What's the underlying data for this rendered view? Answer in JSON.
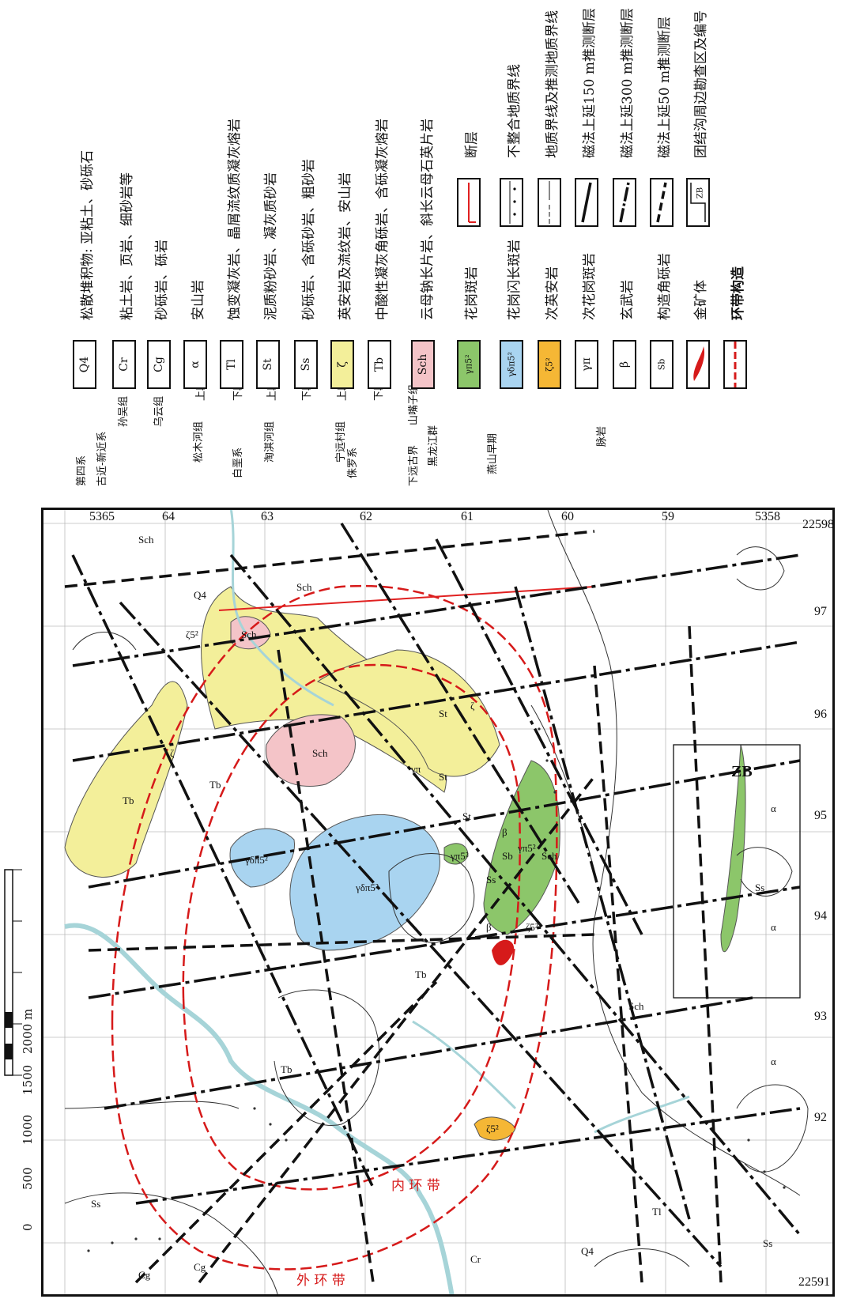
{
  "scale_bar": {
    "ticks": [
      "0",
      "500",
      "1000",
      "1500",
      "2000 m"
    ]
  },
  "legend_groups": {
    "quaternary": "第四系",
    "paleogene_neogene": "古近-新近系",
    "cretaceous": "白垩系",
    "jurassic": "侏罗系",
    "paleoproterozoic": "下远古界",
    "yanshan": "燕山早期",
    "dikes": "脉岩"
  },
  "formations": {
    "sunwu": "孙吴组",
    "wuyun": "乌云组",
    "songmuhe": "松木河组",
    "nenjianghe": "淘淇河组",
    "ningyuancun": "宁远村组",
    "heilongjiang": "黑龙江群",
    "shanzuizi": "山嘴子组",
    "upper": "上段",
    "lower": "下段"
  },
  "legend_items": [
    {
      "code": "Q4",
      "text": "松散堆积物: 亚粘土、砂砾石",
      "fill": "#ffffff"
    },
    {
      "code": "Cr",
      "text": "粘土岩、页岩、细砂岩等",
      "fill": "#ffffff"
    },
    {
      "code": "Cg",
      "text": "砂砾岩、砾岩",
      "fill": "#ffffff"
    },
    {
      "code": "α",
      "text": "安山岩",
      "fill": "#ffffff"
    },
    {
      "code": "Tl",
      "text": "蚀变凝灰岩、晶屑流纹质凝灰熔岩",
      "fill": "#ffffff"
    },
    {
      "code": "St",
      "text": "泥质粉砂岩、凝灰质砂岩",
      "fill": "#ffffff"
    },
    {
      "code": "Ss",
      "text": "砂砾岩、含砾砂岩、粗砂岩",
      "fill": "#ffffff"
    },
    {
      "code": "ζ",
      "text": "英安岩及流纹岩、安山岩",
      "fill": "#f3ef9a"
    },
    {
      "code": "Tb",
      "text": "中酸性凝灰角砾岩、含砾凝灰熔岩",
      "fill": "#ffffff"
    },
    {
      "code": "Sch",
      "text": "云母钠长片岩、斜长云母石英片岩",
      "fill": "#f4c4c8"
    },
    {
      "code": "γπ5²",
      "text": "花岗斑岩",
      "fill": "#8cc66a"
    },
    {
      "code": "γδπ5²",
      "text": "花岗闪长斑岩",
      "fill": "#a9d4f0"
    },
    {
      "code": "ζ5²",
      "text": "次英安岩",
      "fill": "#f5b735"
    },
    {
      "code": "γπ",
      "text": "次花岗斑岩",
      "fill": "#ffffff"
    },
    {
      "code": "β",
      "text": "玄武岩",
      "fill": "#ffffff"
    },
    {
      "code": "Sb",
      "text": "构造角砾岩",
      "fill": "#ffffff"
    },
    {
      "code": "",
      "text": "金矿体",
      "fill": "#ffffff"
    },
    {
      "code": "",
      "text": "环带构造",
      "fill": "#ffffff"
    }
  ],
  "legend_symbols": [
    {
      "text": "断层"
    },
    {
      "text": "不整合地质界线"
    },
    {
      "text": "地质界线及推测地质界线"
    },
    {
      "text": "磁法上延150 m推测断层"
    },
    {
      "text": "磁法上延300 m推测断层"
    },
    {
      "text": "磁法上延50 m推测断层"
    },
    {
      "text": "团结沟周边勘查区及编号",
      "code": "ZB"
    }
  ],
  "map": {
    "grid_top": [
      "5365",
      "64",
      "63",
      "62",
      "61",
      "60",
      "59",
      "5358"
    ],
    "grid_right": [
      "22598",
      "97",
      "96",
      "95",
      "94",
      "93",
      "92",
      "22591"
    ],
    "corner_top_right": "225",
    "corner_bottom_right": "22591",
    "corner_bottom_left_a": "5358",
    "corner_top_left": "22591",
    "ring_outer": "外 环 带",
    "ring_inner": "内 环 带",
    "zone_label": "ZB",
    "rock_labels": [
      "Sch",
      "Sch",
      "Sch",
      "Sch",
      "Sch",
      "Sch",
      "Tb",
      "Tb",
      "Tb",
      "Tb",
      "Ss",
      "Ss",
      "Ss",
      "Ss",
      "St",
      "St",
      "St",
      "Q4",
      "Q4",
      "Cr",
      "Cg",
      "Cg",
      "Tl",
      "α",
      "α",
      "α",
      "ζ",
      "ζ",
      "β",
      "β",
      "γπ",
      "Sb",
      "γδπ5²",
      "γδπ5²",
      "γπ5²",
      "γπ5²",
      "ζ5²",
      "ζ5²",
      "ζ5²"
    ]
  },
  "colors": {
    "yellow": "#f3ef9a",
    "pink": "#f4c4c8",
    "green": "#8cc66a",
    "blue": "#a9d4f0",
    "orange": "#f5b735",
    "river": "#a6d4d8",
    "ring": "#d61a1a",
    "fault_red": "#e02020"
  }
}
